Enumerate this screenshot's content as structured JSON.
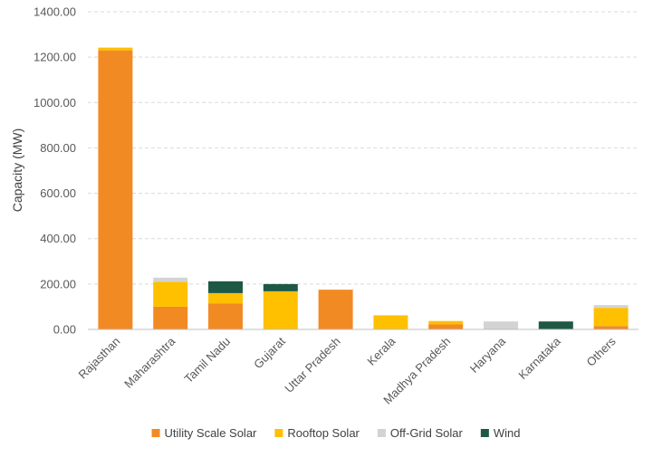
{
  "chart_data": {
    "type": "bar",
    "stacked": true,
    "title": "",
    "xlabel": "",
    "ylabel": "Capacity (MW)",
    "ylim": [
      0,
      1400
    ],
    "yticks": [
      0,
      200,
      400,
      600,
      800,
      1000,
      1200,
      1400
    ],
    "ytick_labels": [
      "0.00",
      "200.00",
      "400.00",
      "600.00",
      "800.00",
      "1000.00",
      "1200.00",
      "1400.00"
    ],
    "grid": true,
    "legend_position": "bottom",
    "categories": [
      "Rajasthan",
      "Maharashtra",
      "Tamil Nadu",
      "Gujarat",
      "Uttar Pradesh",
      "Kerala",
      "Madhya Pradesh",
      "Haryana",
      "Karnataka",
      "Others"
    ],
    "series": [
      {
        "name": "Utility Scale Solar",
        "color": "#F28A24",
        "values": [
          1230,
          100,
          115,
          0,
          175,
          0,
          22,
          0,
          0,
          15
        ]
      },
      {
        "name": "Rooftop Solar",
        "color": "#FFC000",
        "values": [
          12,
          110,
          45,
          168,
          0,
          62,
          15,
          0,
          0,
          80
        ]
      },
      {
        "name": "Off-Grid Solar",
        "color": "#D3D3D3",
        "values": [
          0,
          18,
          0,
          0,
          0,
          0,
          0,
          35,
          0,
          12
        ]
      },
      {
        "name": "Wind",
        "color": "#1E5945",
        "values": [
          0,
          0,
          52,
          32,
          0,
          0,
          0,
          0,
          35,
          0
        ]
      }
    ]
  }
}
